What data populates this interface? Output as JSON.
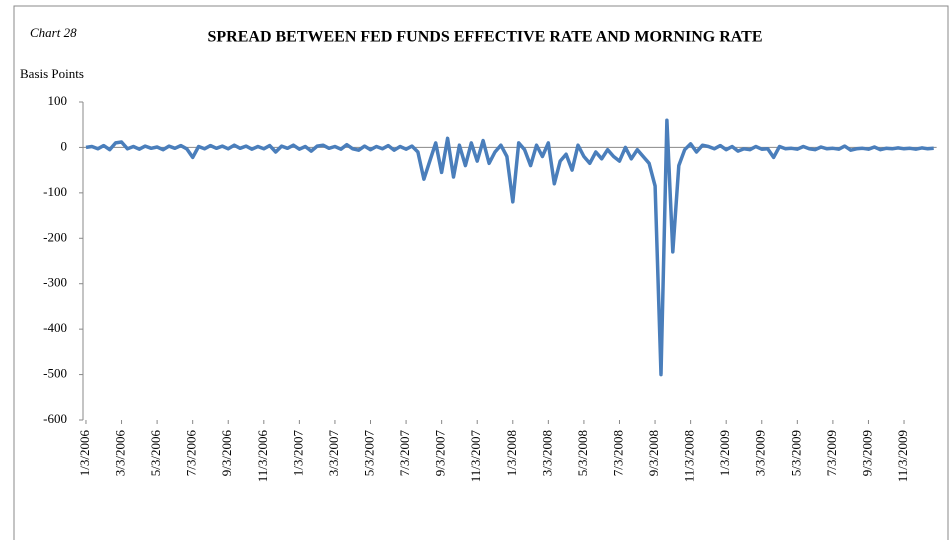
{
  "chart_data": {
    "type": "line",
    "chart_label": "Chart 28",
    "title": "SPREAD BETWEEN FED FUNDS EFFECTIVE RATE AND MORNING RATE",
    "y_label": "Basis Points",
    "color": "#4a7ebb",
    "ylim": [
      -600,
      100
    ],
    "yticks": [
      100,
      0,
      -100,
      -200,
      -300,
      -400,
      -500,
      -600
    ],
    "categories": [
      "1/3/2006",
      null,
      null,
      null,
      null,
      null,
      "3/3/2006",
      null,
      null,
      null,
      null,
      null,
      "5/3/2006",
      null,
      null,
      null,
      null,
      null,
      "7/3/2006",
      null,
      null,
      null,
      null,
      null,
      "9/3/2006",
      null,
      null,
      null,
      null,
      null,
      "11/3/2006",
      null,
      null,
      null,
      null,
      null,
      "1/3/2007",
      null,
      null,
      null,
      null,
      null,
      "3/3/2007",
      null,
      null,
      null,
      null,
      null,
      "5/3/2007",
      null,
      null,
      null,
      null,
      null,
      "7/3/2007",
      null,
      null,
      null,
      null,
      null,
      "9/3/2007",
      null,
      null,
      null,
      null,
      null,
      "11/3/2007",
      null,
      null,
      null,
      null,
      null,
      "1/3/2008",
      null,
      null,
      null,
      null,
      null,
      "3/3/2008",
      null,
      null,
      null,
      null,
      null,
      "5/3/2008",
      null,
      null,
      null,
      null,
      null,
      "7/3/2008",
      null,
      null,
      null,
      null,
      null,
      "9/3/2008",
      null,
      null,
      null,
      null,
      null,
      "11/3/2008",
      null,
      null,
      null,
      null,
      null,
      "1/3/2009",
      null,
      null,
      null,
      null,
      null,
      "3/3/2009",
      null,
      null,
      null,
      null,
      null,
      "5/3/2009",
      null,
      null,
      null,
      null,
      null,
      "7/3/2009",
      null,
      null,
      null,
      null,
      null,
      "9/3/2009",
      null,
      null,
      null,
      null,
      null,
      "11/3/2009",
      null,
      null,
      null,
      null,
      null
    ],
    "values": [
      0,
      2,
      -3,
      4,
      -5,
      10,
      12,
      -3,
      2,
      -4,
      3,
      -2,
      1,
      -5,
      3,
      -2,
      4,
      -3,
      -22,
      2,
      -3,
      4,
      -2,
      3,
      -3,
      5,
      -2,
      3,
      -4,
      2,
      -3,
      4,
      -10,
      3,
      -2,
      5,
      -4,
      2,
      -8,
      3,
      5,
      -2,
      2,
      -4,
      6,
      -3,
      -6,
      3,
      -5,
      2,
      -3,
      4,
      -6,
      2,
      -4,
      3,
      -10,
      -70,
      -30,
      10,
      -55,
      20,
      -65,
      5,
      -40,
      10,
      -30,
      15,
      -35,
      -10,
      5,
      -20,
      -120,
      10,
      -5,
      -40,
      5,
      -20,
      10,
      -80,
      -30,
      -15,
      -50,
      5,
      -20,
      -35,
      -10,
      -25,
      -5,
      -20,
      -30,
      0,
      -25,
      -5,
      -20,
      -35,
      -85,
      -500,
      60,
      -230,
      -40,
      -5,
      8,
      -10,
      5,
      2,
      -3,
      4,
      -5,
      2,
      -8,
      -3,
      -5,
      2,
      -4,
      -3,
      -22,
      2,
      -3,
      -2,
      -4,
      2,
      -3,
      -5,
      1,
      -3,
      -2,
      -4,
      3,
      -6,
      -3,
      -2,
      -4,
      1,
      -5,
      -2,
      -3,
      -1,
      -3,
      -2,
      -4,
      -1,
      -3,
      -2
    ]
  }
}
